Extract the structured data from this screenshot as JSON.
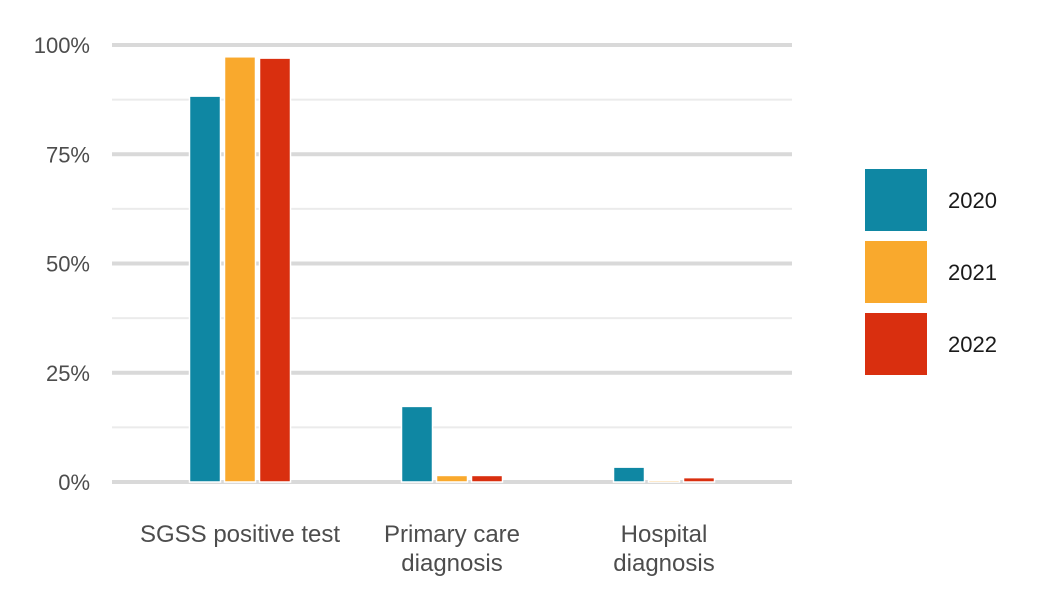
{
  "chart_data": {
    "type": "bar",
    "categories": [
      [
        "SGSS positive test"
      ],
      [
        "Primary care",
        "diagnosis"
      ],
      [
        "Hospital",
        "diagnosis"
      ]
    ],
    "series": [
      {
        "name": "2020",
        "color": "#0f87a3",
        "values": [
          88.3,
          17.3,
          3.4
        ]
      },
      {
        "name": "2021",
        "color": "#f9a92d",
        "values": [
          97.3,
          1.5,
          0.4
        ]
      },
      {
        "name": "2022",
        "color": "#d92f0f",
        "values": [
          97.0,
          1.5,
          1.0
        ]
      }
    ],
    "y_ticks": [
      {
        "value": 0,
        "label": "0%"
      },
      {
        "value": 25,
        "label": "25%"
      },
      {
        "value": 50,
        "label": "50%"
      },
      {
        "value": 75,
        "label": "75%"
      },
      {
        "value": 100,
        "label": "100%"
      }
    ],
    "ylim": [
      0,
      100
    ],
    "title": "",
    "xlabel": "",
    "ylabel": "",
    "grid": true,
    "legend_position": "right"
  }
}
